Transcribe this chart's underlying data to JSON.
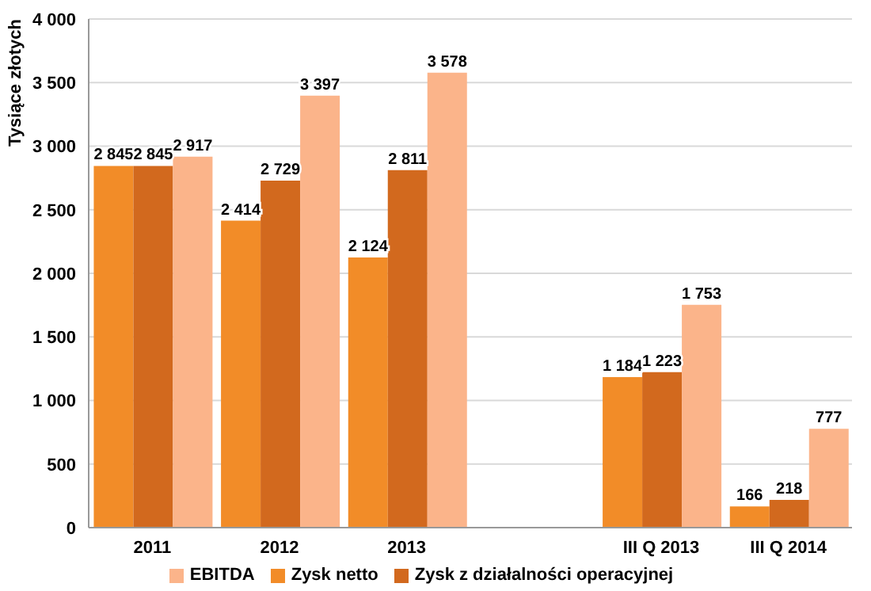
{
  "chart_data": {
    "type": "bar",
    "ylabel": "Tysiące złotych",
    "categories": [
      "2011",
      "2012",
      "2013",
      null,
      "III Q 2013",
      "III Q 2014"
    ],
    "series": [
      {
        "name": "Zysk netto",
        "color": "#f28c28",
        "values": [
          2845,
          2414,
          2124,
          null,
          1184,
          166
        ],
        "value_labels": [
          "2 845",
          "2 414",
          "2 124",
          null,
          "1 184",
          "166"
        ]
      },
      {
        "name": "Zysk z działalności operacyjnej",
        "color": "#d2691e",
        "values": [
          2845,
          2729,
          2811,
          null,
          1223,
          218
        ],
        "value_labels": [
          "2 845",
          "2 729",
          "2 811",
          null,
          "1 223",
          "218"
        ]
      },
      {
        "name": "EBITDA",
        "color": "#fbb48a",
        "values": [
          2917,
          3397,
          3578,
          null,
          1753,
          777
        ],
        "value_labels": [
          "2 917",
          "3 397",
          "3 578",
          null,
          "1 753",
          "777"
        ]
      }
    ],
    "ylim": [
      0,
      4000
    ],
    "yticks": [
      {
        "value": 0,
        "label": "0"
      },
      {
        "value": 500,
        "label": "500"
      },
      {
        "value": 1000,
        "label": "1 000"
      },
      {
        "value": 1500,
        "label": "1 500"
      },
      {
        "value": 2000,
        "label": "2 000"
      },
      {
        "value": 2500,
        "label": "2 500"
      },
      {
        "value": 3000,
        "label": "3 000"
      },
      {
        "value": 3500,
        "label": "3 500"
      },
      {
        "value": 4000,
        "label": "4 000"
      }
    ],
    "grid": "y",
    "legend": "bottom"
  }
}
